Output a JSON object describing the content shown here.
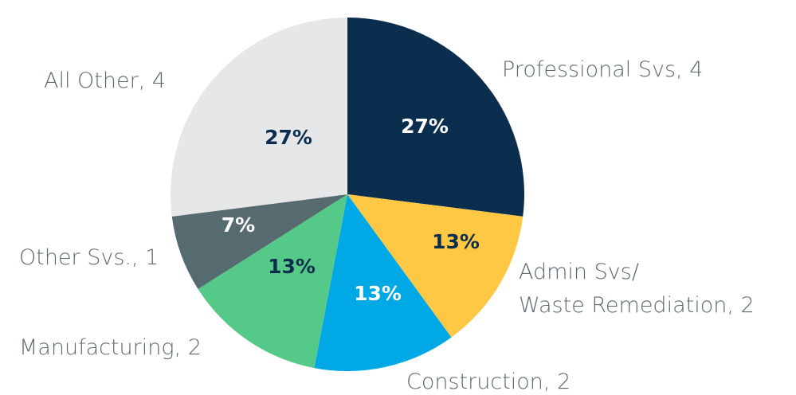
{
  "chart_data": {
    "type": "pie",
    "categories": [
      [
        "Professional Svs, 4"
      ],
      [
        "Admin Svs/",
        "Waste Remediation, 2"
      ],
      [
        "Construction, 2"
      ],
      [
        "Manufacturing, 2"
      ],
      [
        "Other Svs., 1"
      ],
      [
        "All Other, 4"
      ]
    ],
    "values": [
      27,
      13,
      13,
      13,
      7,
      27
    ],
    "value_labels": [
      "27%",
      "13%",
      "13%",
      "13%",
      "7%",
      "27%"
    ],
    "colors": [
      "#0b2d4e",
      "#fec844",
      "#00a9e6",
      "#55c987",
      "#566b70",
      "#e6e7e9"
    ]
  }
}
